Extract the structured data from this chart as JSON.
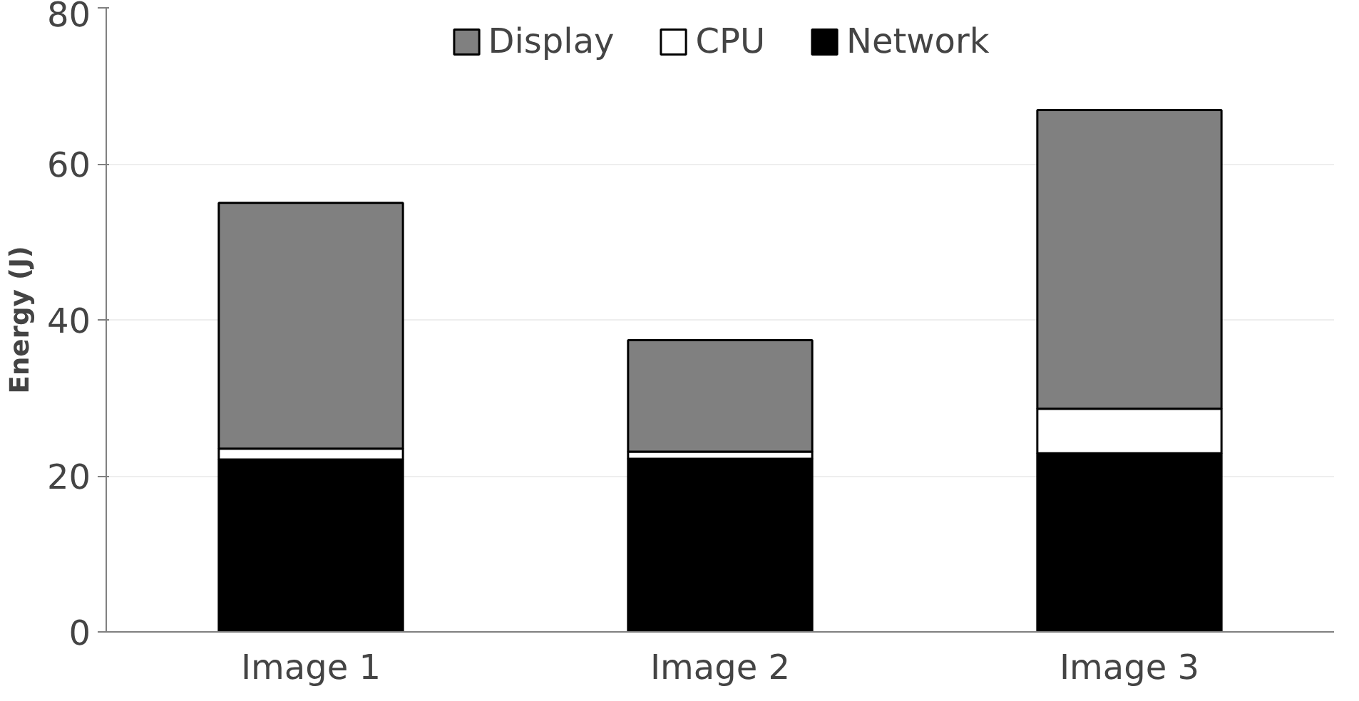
{
  "chart_data": {
    "type": "bar",
    "stacked": true,
    "ylabel": "Energy (J)",
    "categories": [
      "Image 1",
      "Image 2",
      "Image 3"
    ],
    "series": [
      {
        "name": "Network",
        "color": "#000000",
        "values": [
          22.1,
          22.2,
          22.9
        ]
      },
      {
        "name": "CPU",
        "color": "#ffffff",
        "values": [
          1.4,
          0.9,
          5.7
        ]
      },
      {
        "name": "Display",
        "color": "#808080",
        "values": [
          31.5,
          14.3,
          38.3
        ]
      }
    ],
    "ylim": [
      0,
      80
    ],
    "yticks": [
      0,
      20,
      40,
      60,
      80
    ],
    "grid": "y",
    "legend": "top"
  }
}
